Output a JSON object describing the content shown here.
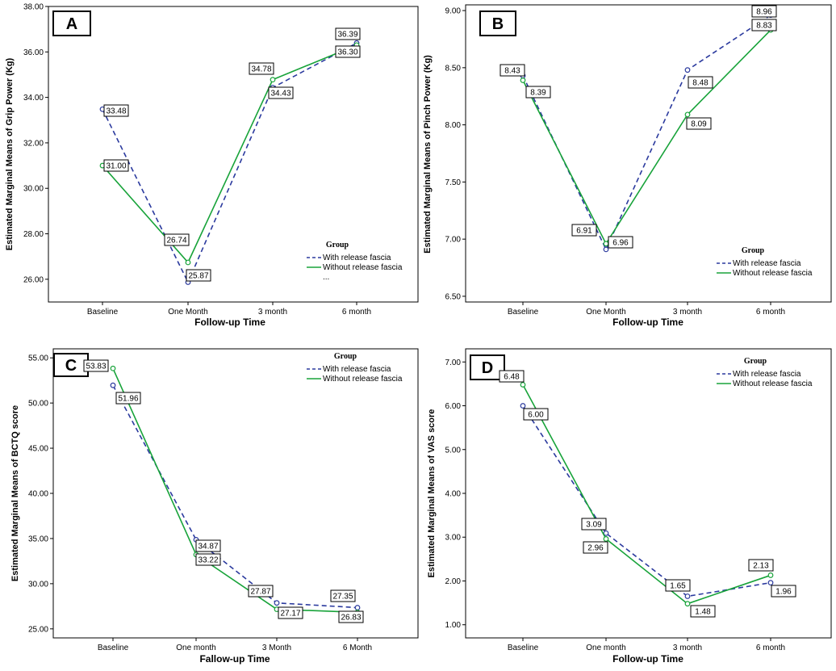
{
  "chart_data": [
    {
      "type": "line",
      "panel_label": "A",
      "ylabel": "Estimated Marginal Means of Grip Power (Kg)",
      "xlabel": "Follow-up Time",
      "categories": [
        "Baseline",
        "One Month",
        "3 month",
        "6 month"
      ],
      "ylim": [
        25,
        38
      ],
      "yticks": [
        "26.00",
        "28.00",
        "30.00",
        "32.00",
        "34.00",
        "36.00",
        "38.00"
      ],
      "legend_title": "Group",
      "legend_extra": "...",
      "series": [
        {
          "name": "With release fascia",
          "values": [
            33.48,
            25.87,
            34.43,
            36.39
          ],
          "labels": [
            "33.48",
            "25.87",
            "34.43",
            "36.39"
          ],
          "color": "#2b3a9e",
          "dash": "dashed"
        },
        {
          "name": "Without release fascia",
          "values": [
            31.0,
            26.74,
            34.78,
            36.3
          ],
          "labels": [
            "31.00",
            "26.74",
            "34.78",
            "36.30"
          ],
          "color": "#18a33a",
          "dash": "solid"
        }
      ]
    },
    {
      "type": "line",
      "panel_label": "B",
      "ylabel": "Estimated Marginal Means of Pinch Power (Kg)",
      "xlabel": "Follow-up Time",
      "categories": [
        "Baseline",
        "One Month",
        "3 month",
        "6 month"
      ],
      "ylim": [
        6.45,
        9.05
      ],
      "yticks": [
        "6.50",
        "7.00",
        "7.50",
        "8.00",
        "8.50",
        "9.00"
      ],
      "legend_title": "Group",
      "series": [
        {
          "name": "With release fascia",
          "values": [
            8.43,
            6.91,
            8.48,
            8.96
          ],
          "labels": [
            "8.43",
            "6.91",
            "8.48",
            "8.96"
          ],
          "color": "#2b3a9e",
          "dash": "dashed"
        },
        {
          "name": "Without release fascia",
          "values": [
            8.39,
            6.96,
            8.09,
            8.83
          ],
          "labels": [
            "8.39",
            "6.96",
            "8.09",
            "8.83"
          ],
          "color": "#18a33a",
          "dash": "solid"
        }
      ]
    },
    {
      "type": "line",
      "panel_label": "C",
      "ylabel": "Estimated Marginal Means of BCTQ score",
      "xlabel": "Fallow-up Time",
      "categories": [
        "Baseline",
        "One month",
        "3 Month",
        "6 Month"
      ],
      "ylim": [
        24,
        56
      ],
      "yticks": [
        "25.00",
        "30.00",
        "35.00",
        "40.00",
        "45.00",
        "50.00",
        "55.00"
      ],
      "legend_title": "Group",
      "series": [
        {
          "name": "With release fascia",
          "values": [
            51.96,
            34.87,
            27.87,
            27.35
          ],
          "labels": [
            "51.96",
            "34.87",
            "27.87",
            "27.35"
          ],
          "color": "#2b3a9e",
          "dash": "dashed"
        },
        {
          "name": "Without release fascia",
          "values": [
            53.83,
            33.22,
            27.17,
            26.83
          ],
          "labels": [
            "53.83",
            "33.22",
            "27.17",
            "26.83"
          ],
          "color": "#18a33a",
          "dash": "solid"
        }
      ]
    },
    {
      "type": "line",
      "panel_label": "D",
      "ylabel": "Estimated Marginal Means of VAS score",
      "xlabel": "Follow-up Time",
      "categories": [
        "Baseline",
        "One month",
        "3 month",
        "6 month"
      ],
      "ylim": [
        0.7,
        7.3
      ],
      "yticks": [
        "1.00",
        "2.00",
        "3.00",
        "4.00",
        "5.00",
        "6.00",
        "7.00"
      ],
      "legend_title": "Group",
      "series": [
        {
          "name": "With release fascia",
          "values": [
            6.0,
            3.09,
            1.65,
            1.96
          ],
          "labels": [
            "6.00",
            "3.09",
            "1.65",
            "1.96"
          ],
          "color": "#2b3a9e",
          "dash": "dashed"
        },
        {
          "name": "Without release fascia",
          "values": [
            6.48,
            2.96,
            1.48,
            2.13
          ],
          "labels": [
            "6.48",
            "2.96",
            "1.48",
            "2.13"
          ],
          "color": "#18a33a",
          "dash": "solid"
        }
      ]
    }
  ]
}
